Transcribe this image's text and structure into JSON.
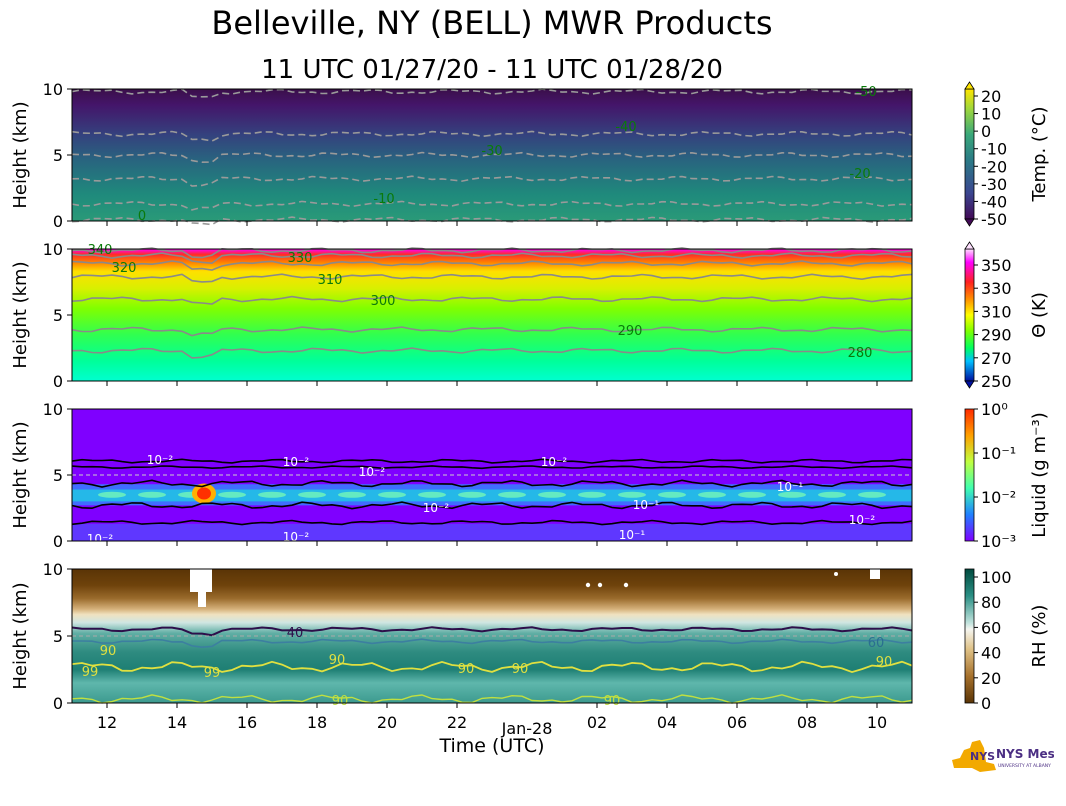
{
  "header": {
    "title": "Belleville, NY (BELL) MWR Products",
    "subtitle": "11 UTC 01/27/20 - 11 UTC 01/28/20"
  },
  "logo": {
    "text": "NYS Mesonet",
    "subtext": "UNIVERSITY AT ALBANY"
  },
  "chart_data": [
    {
      "type": "heatmap",
      "variable": "temperature",
      "ylabel": "Height (km)",
      "ylim": [
        0,
        10
      ],
      "yticks": [
        "0",
        "5",
        "10"
      ],
      "colorbar": {
        "label": "Temp. (°C)",
        "range": [
          -50,
          20
        ],
        "ticks": [
          "20",
          "10",
          "0",
          "-10",
          "-20",
          "-30",
          "-40",
          "-50"
        ],
        "extend": "both"
      },
      "contours": [
        {
          "label": "-50",
          "height_km": 9.8
        },
        {
          "label": "-40",
          "height_km": 6.6
        },
        {
          "label": "-30",
          "height_km": 5.0
        },
        {
          "label": "-20",
          "height_km": 3.2
        },
        {
          "label": "-10",
          "height_km": 1.3
        },
        {
          "label": "0",
          "height_km": 0.1
        }
      ]
    },
    {
      "type": "heatmap",
      "variable": "potential_temperature",
      "ylabel": "Height (km)",
      "ylim": [
        0,
        10
      ],
      "yticks": [
        "0",
        "5",
        "10"
      ],
      "colorbar": {
        "label": "Θ (K)",
        "range": [
          250,
          360
        ],
        "ticks": [
          "350",
          "330",
          "310",
          "290",
          "270",
          "250"
        ],
        "extend": "both"
      },
      "contours": [
        {
          "label": "280",
          "height_km": 2.3
        },
        {
          "label": "290",
          "height_km": 3.9
        },
        {
          "label": "300",
          "height_km": 6.2
        },
        {
          "label": "310",
          "height_km": 7.9
        },
        {
          "label": "320",
          "height_km": 8.9
        },
        {
          "label": "330",
          "height_km": 9.5
        },
        {
          "label": "340",
          "height_km": 9.9
        }
      ]
    },
    {
      "type": "heatmap",
      "variable": "liquid_water",
      "ylabel": "Height (km)",
      "ylim": [
        0,
        10
      ],
      "yticks": [
        "0",
        "5",
        "10"
      ],
      "colorbar": {
        "label": "Liquid (g m⁻³)",
        "scale": "log",
        "range": [
          0.001,
          1
        ],
        "ticks": [
          "10⁰",
          "10⁻¹",
          "10⁻²",
          "10⁻³"
        ]
      },
      "contour_labels": [
        "10⁻²",
        "10⁻²",
        "10⁻²",
        "10⁻²",
        "10⁻²",
        "10⁻²",
        "10⁻¹",
        "10⁻¹",
        "10⁻¹",
        "10⁻²",
        "10⁻²"
      ]
    },
    {
      "type": "heatmap",
      "variable": "relative_humidity",
      "ylabel": "Height (km)",
      "ylim": [
        0,
        10
      ],
      "yticks": [
        "0",
        "5",
        "10"
      ],
      "colorbar": {
        "label": "RH (%)",
        "range": [
          0,
          105
        ],
        "ticks": [
          "100",
          "80",
          "60",
          "40",
          "20",
          "0"
        ]
      },
      "contour_labels": [
        "40",
        "60",
        "90",
        "90",
        "90",
        "90",
        "90",
        "99",
        "99",
        "90",
        "90"
      ]
    }
  ],
  "xaxis": {
    "label": "Time (UTC)",
    "ticks": [
      "12",
      "14",
      "16",
      "18",
      "20",
      "22",
      "02",
      "04",
      "06",
      "08",
      "10"
    ],
    "date_label": "Jan-28"
  }
}
